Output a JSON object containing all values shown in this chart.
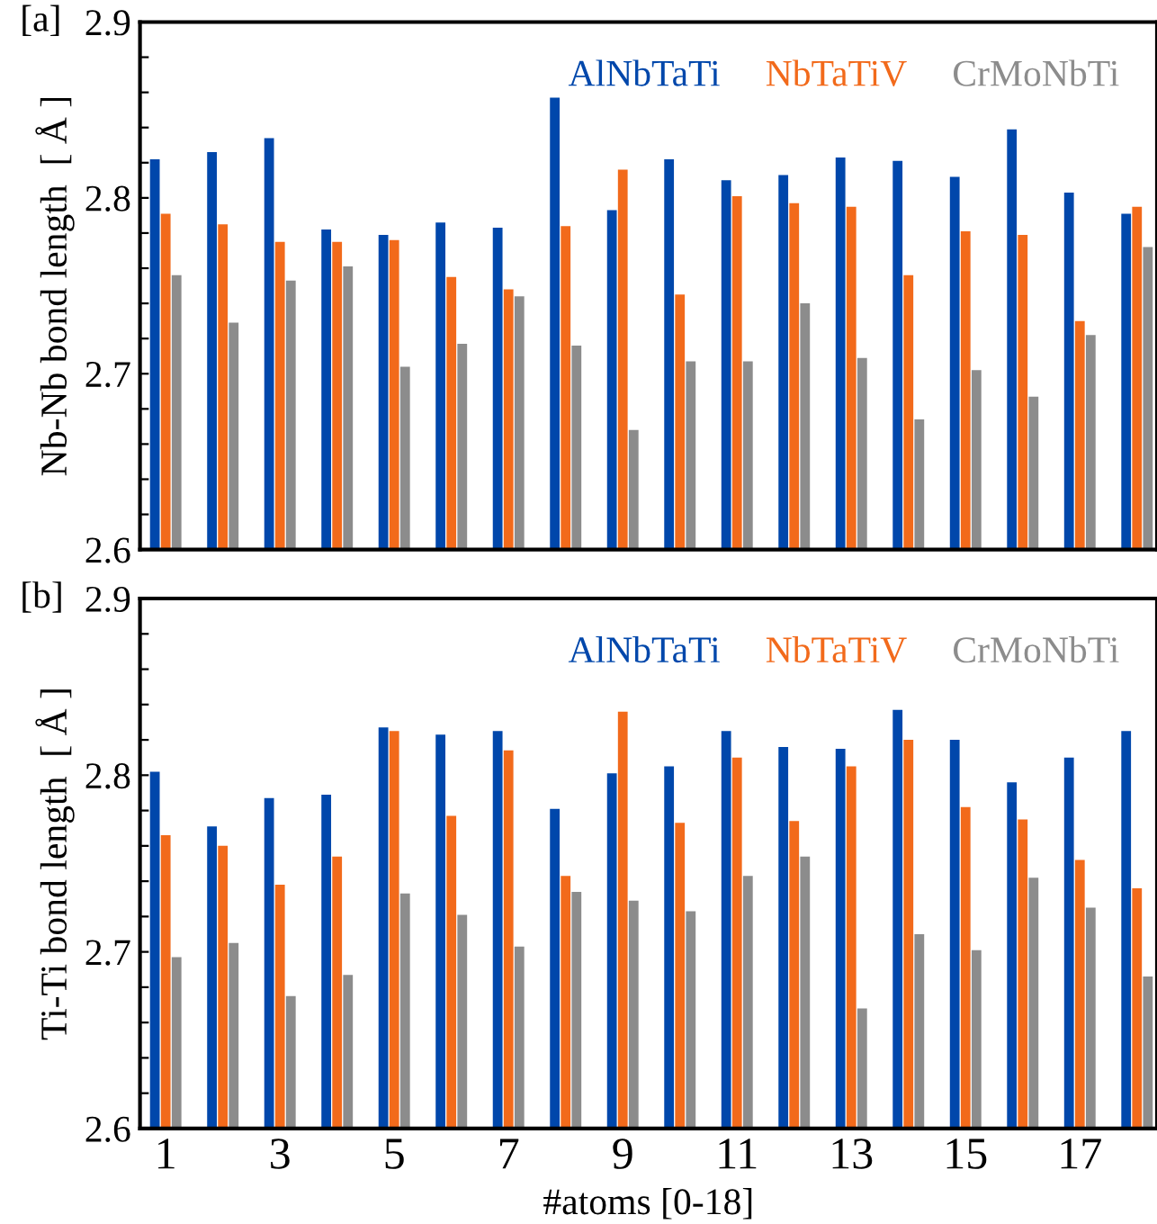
{
  "chart_data": [
    {
      "type": "bar",
      "title": "[a]",
      "ylabel": "Nb-Nb bond length  [ Å ]",
      "categories": [
        "1",
        null,
        "3",
        null,
        "5",
        null,
        "7",
        null,
        "9",
        null,
        "11",
        null,
        "13",
        null,
        "15",
        null,
        "17",
        null
      ],
      "series": [
        {
          "name": "AlNbTaTi",
          "color": "#0047ab",
          "values": [
            2.822,
            2.826,
            2.834,
            2.782,
            2.779,
            2.786,
            2.783,
            2.857,
            2.793,
            2.822,
            2.81,
            2.813,
            2.823,
            2.821,
            2.812,
            2.839,
            2.803,
            2.791
          ]
        },
        {
          "name": "NbTaTiV",
          "color": "#f26a1b",
          "values": [
            2.791,
            2.785,
            2.775,
            2.775,
            2.776,
            2.755,
            2.748,
            2.784,
            2.816,
            2.745,
            2.801,
            2.797,
            2.795,
            2.756,
            2.781,
            2.779,
            2.73,
            2.795
          ]
        },
        {
          "name": "CrMoNbTi",
          "color": "#8c8c8c",
          "values": [
            2.756,
            2.729,
            2.753,
            2.761,
            2.704,
            2.717,
            2.744,
            2.716,
            2.668,
            2.707,
            2.707,
            2.74,
            2.709,
            2.674,
            2.702,
            2.687,
            2.722,
            2.772
          ]
        }
      ],
      "ylim": [
        2.6,
        2.9
      ],
      "yticks": [
        2.6,
        {
          "value": 2.62,
          "label": null
        },
        {
          "value": 2.64,
          "label": null
        },
        {
          "value": 2.66,
          "label": null
        },
        {
          "value": 2.68,
          "label": null
        },
        2.7,
        {
          "value": 2.72,
          "label": null
        },
        {
          "value": 2.74,
          "label": null
        },
        {
          "value": 2.76,
          "label": null
        },
        {
          "value": 2.78,
          "label": null
        },
        2.8,
        {
          "value": 2.82,
          "label": null
        },
        {
          "value": 2.84,
          "label": null
        },
        {
          "value": 2.86,
          "label": null
        },
        {
          "value": 2.88,
          "label": null
        },
        2.9
      ],
      "tick_labels": "y",
      "legend": "top right",
      "grid": false
    },
    {
      "type": "bar",
      "title": "[b]",
      "ylabel": "Ti-Ti bond length  [ Å ]",
      "xlabel": "#atoms [0-18]",
      "categories": [
        "1",
        null,
        "3",
        null,
        "5",
        null,
        "7",
        null,
        "9",
        null,
        "11",
        null,
        "13",
        null,
        "15",
        null,
        "17",
        null
      ],
      "series": [
        {
          "name": "AlNbTaTi",
          "color": "#0047ab",
          "values": [
            2.802,
            2.771,
            2.787,
            2.789,
            2.827,
            2.823,
            2.825,
            2.781,
            2.801,
            2.805,
            2.825,
            2.816,
            2.815,
            2.837,
            2.82,
            2.796,
            2.81,
            2.825
          ]
        },
        {
          "name": "NbTaTiV",
          "color": "#f26a1b",
          "values": [
            2.766,
            2.76,
            2.738,
            2.754,
            2.825,
            2.777,
            2.814,
            2.743,
            2.836,
            2.773,
            2.81,
            2.774,
            2.805,
            2.82,
            2.782,
            2.775,
            2.752,
            2.736
          ]
        },
        {
          "name": "CrMoNbTi",
          "color": "#8c8c8c",
          "values": [
            2.697,
            2.705,
            2.675,
            2.687,
            2.733,
            2.721,
            2.703,
            2.734,
            2.729,
            2.723,
            2.743,
            2.754,
            2.668,
            2.71,
            2.701,
            2.742,
            2.725,
            2.686
          ]
        }
      ],
      "ylim": [
        2.6,
        2.9
      ],
      "yticks": [
        2.6,
        {
          "value": 2.62,
          "label": null
        },
        {
          "value": 2.64,
          "label": null
        },
        {
          "value": 2.66,
          "label": null
        },
        {
          "value": 2.68,
          "label": null
        },
        2.7,
        {
          "value": 2.72,
          "label": null
        },
        {
          "value": 2.74,
          "label": null
        },
        {
          "value": 2.76,
          "label": null
        },
        {
          "value": 2.78,
          "label": null
        },
        2.8,
        {
          "value": 2.82,
          "label": null
        },
        {
          "value": 2.84,
          "label": null
        },
        {
          "value": 2.86,
          "label": null
        },
        {
          "value": 2.88,
          "label": null
        },
        2.9
      ],
      "legend": "top right",
      "grid": false
    }
  ]
}
